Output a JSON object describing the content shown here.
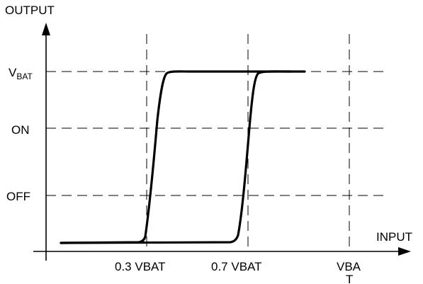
{
  "diagram": {
    "y_axis_label": "OUTPUT",
    "x_axis_label": "INPUT",
    "y_levels": {
      "vbat_main": "V",
      "vbat_sub": "BAT",
      "on": "ON",
      "off": "OFF"
    },
    "x_ticks": {
      "low_threshold": "0.3 VBAT",
      "high_threshold": "0.7 VBAT",
      "vbat_line1": "VBA",
      "vbat_line2": "T"
    }
  }
}
